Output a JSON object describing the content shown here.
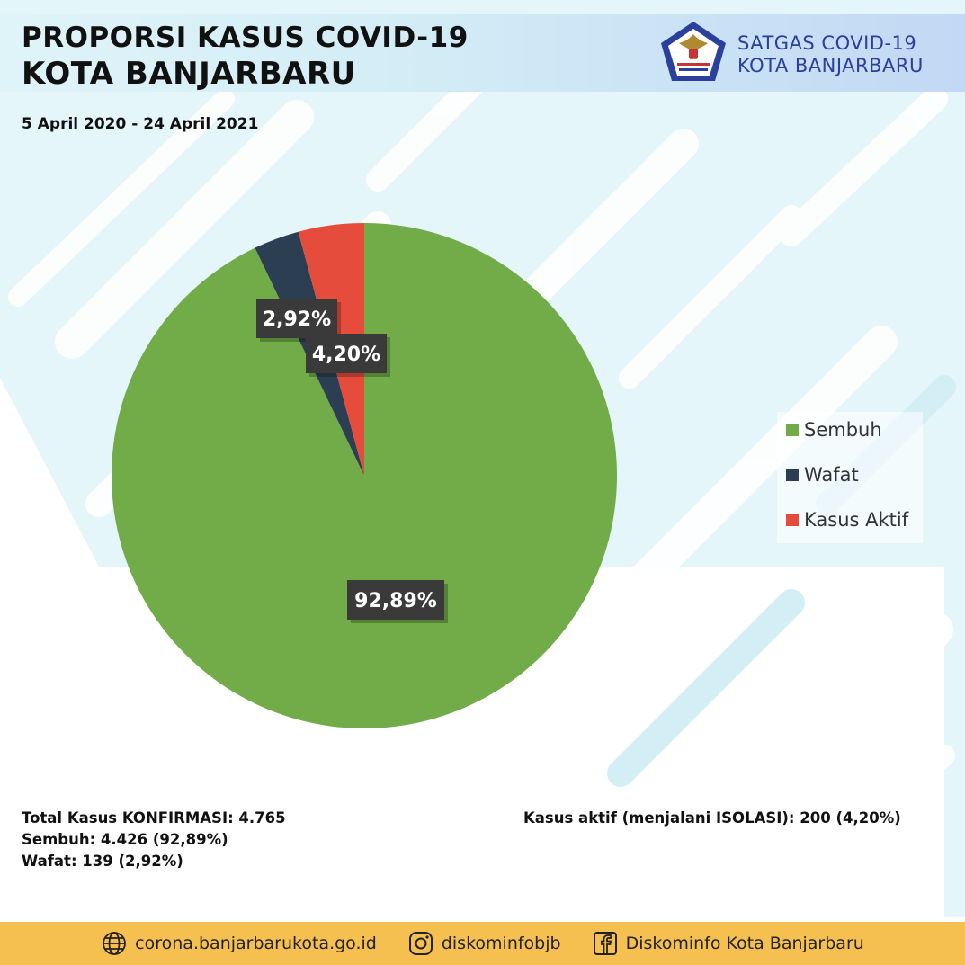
{
  "header": {
    "title_line1": "PROPORSI KASUS COVID-19",
    "title_line2": "KOTA BANJARBARU",
    "org_line1": "SATGAS COVID-19",
    "org_line2": "KOTA BANJARBARU",
    "logo_icon": "garuda-emblem-icon"
  },
  "date_range": "5 April 2020 - 24 April 2021",
  "chart_data": {
    "type": "pie",
    "labels": [
      "Sembuh",
      "Wafat",
      "Kasus Aktif"
    ],
    "values": [
      92.89,
      2.92,
      4.2
    ],
    "data_labels": [
      "92,89%",
      "2,92%",
      "4,20%"
    ],
    "colors": [
      "#72ac48",
      "#2c3e51",
      "#e54c3c"
    ],
    "legend_position": "right"
  },
  "stats": {
    "total": "Total Kasus KONFIRMASI: 4.765",
    "sembuh": "Sembuh: 4.426 (92,89%)",
    "wafat": "Wafat: 139 (2,92%)",
    "aktif": "Kasus aktif (menjalani ISOLASI): 200 (4,20%)"
  },
  "footer": {
    "website": "corona.banjarbarukota.go.id",
    "instagram": "diskominfobjb",
    "facebook": "Diskominfo Kota Banjarbaru",
    "website_icon": "globe-icon",
    "instagram_icon": "instagram-icon",
    "facebook_icon": "facebook-icon"
  }
}
